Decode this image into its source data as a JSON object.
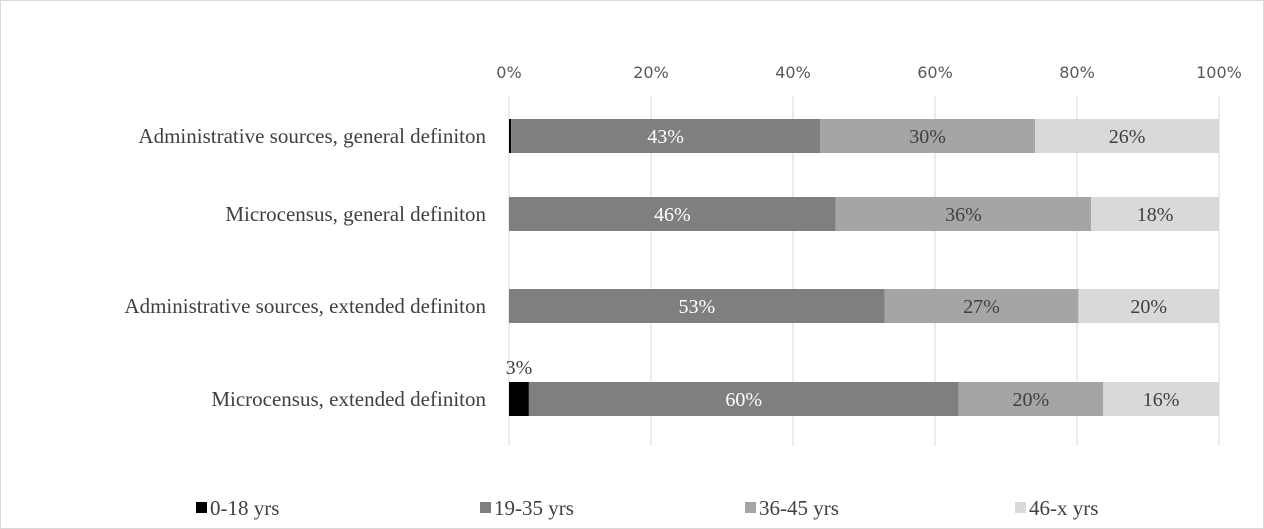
{
  "chart_data": {
    "type": "bar",
    "orientation": "horizontal",
    "stacked": "percent",
    "categories": [
      "Administrative sources, general definiton",
      "Microcensus, general definiton",
      "Administrative sources, extended definiton",
      "Microcensus, extended definiton"
    ],
    "series": [
      {
        "name": "0-18 yrs",
        "color": "#000000",
        "values": [
          0.3,
          0,
          0,
          2.8
        ],
        "labels": [
          "",
          "",
          "",
          "3%"
        ]
      },
      {
        "name": "19-35 yrs",
        "color": "#7f7f7f",
        "values": [
          43.5,
          46,
          52.9,
          60.5
        ],
        "labels": [
          "43%",
          "46%",
          "53%",
          "60%"
        ]
      },
      {
        "name": "36-45 yrs",
        "color": "#a5a5a5",
        "values": [
          30.3,
          36,
          27.3,
          20.4
        ],
        "labels": [
          "30%",
          "36%",
          "27%",
          "20%"
        ]
      },
      {
        "name": "46-x yrs",
        "color": "#d9d9d9",
        "values": [
          25.9,
          18,
          19.8,
          16.3
        ],
        "labels": [
          "26%",
          "18%",
          "20%",
          "16%"
        ]
      }
    ],
    "x_ticks": [
      "0%",
      "20%",
      "40%",
      "60%",
      "80%",
      "100%"
    ],
    "xlim": [
      0,
      100
    ],
    "axis_position": "top",
    "gridlines": true,
    "legend_position": "bottom"
  }
}
